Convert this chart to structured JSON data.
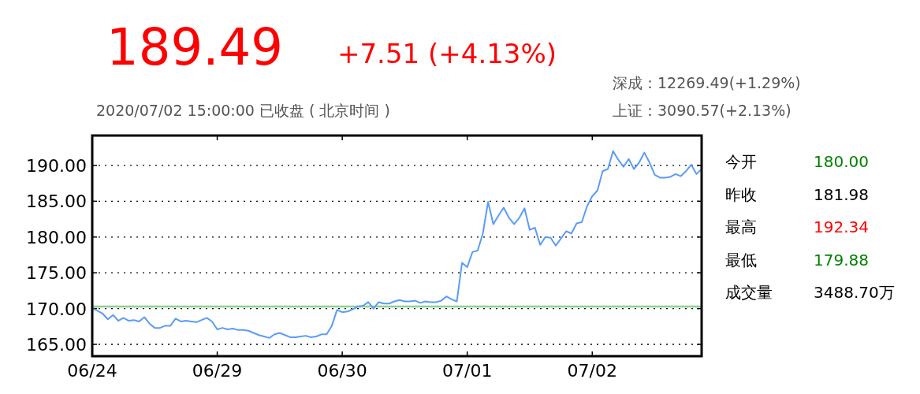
{
  "chart_data": {
    "type": "line",
    "title": "189.49",
    "subtitle": "2020/07/02 15:00:00 已收盘 ( 北京时间 )",
    "annotations": [
      "+7.51 (+4.13%)",
      "深成：12269.49(+1.29%)",
      "上证：3090.57(+2.13%)",
      "今开",
      "180.00",
      "昨收",
      "181.98",
      "最高",
      "192.34",
      "最低",
      "179.88",
      "成交量",
      "3488.70万"
    ],
    "categories": [
      "06/24",
      null,
      null,
      null,
      null,
      null,
      null,
      null,
      null,
      null,
      null,
      null,
      null,
      null,
      null,
      null,
      null,
      null,
      null,
      null,
      null,
      null,
      null,
      null,
      "06/29",
      null,
      null,
      null,
      null,
      null,
      null,
      null,
      null,
      null,
      null,
      null,
      null,
      null,
      null,
      null,
      null,
      null,
      null,
      null,
      null,
      null,
      null,
      null,
      "06/30",
      null,
      null,
      null,
      null,
      null,
      null,
      null,
      null,
      null,
      null,
      null,
      null,
      null,
      null,
      null,
      null,
      null,
      null,
      null,
      null,
      null,
      null,
      null,
      "07/01",
      null,
      null,
      null,
      null,
      null,
      null,
      null,
      null,
      null,
      null,
      null,
      null,
      null,
      null,
      null,
      null,
      null,
      null,
      null,
      null,
      null,
      null,
      null,
      "07/02",
      null,
      null,
      null,
      null,
      null,
      null,
      null,
      null,
      null,
      null,
      null,
      null,
      null,
      null,
      null,
      null,
      null,
      null,
      null,
      null,
      null
    ],
    "ylim": [
      163.35,
      194.18
    ],
    "yticks": [
      {
        "value": 165,
        "label": "165.00"
      },
      {
        "value": 170,
        "label": "170.00"
      },
      {
        "value": 175,
        "label": "175.00"
      },
      {
        "value": 180,
        "label": "180.00"
      },
      {
        "value": 185,
        "label": "185.00"
      },
      {
        "value": 190,
        "label": "190.00"
      }
    ],
    "grid": "y",
    "marker": "none",
    "line_style": "solid",
    "ref_lines": [
      {
        "axis": "y",
        "value": 170.3,
        "label": null,
        "color": "#90d090"
      }
    ],
    "series": [
      {
        "color": "#5b9cf5",
        "values": [
          170.0,
          169.7,
          169.3,
          168.5,
          169.1,
          168.3,
          168.7,
          168.3,
          168.4,
          168.2,
          168.8,
          167.9,
          167.3,
          167.3,
          167.6,
          167.6,
          168.6,
          168.2,
          168.3,
          168.2,
          168.1,
          168.4,
          168.7,
          168.2,
          167.1,
          167.3,
          167.1,
          167.2,
          167.0,
          167.0,
          166.9,
          166.6,
          166.3,
          166.1,
          165.9,
          166.4,
          166.6,
          166.3,
          166.0,
          166.0,
          166.1,
          166.2,
          166.0,
          166.1,
          166.4,
          166.4,
          167.6,
          169.8,
          169.5,
          169.6,
          169.9,
          170.3,
          170.4,
          170.9,
          170.0,
          170.9,
          170.7,
          170.7,
          171.0,
          171.2,
          171.0,
          171.0,
          171.1,
          170.8,
          171.0,
          170.9,
          170.9,
          171.1,
          171.7,
          171.3,
          171.0,
          176.4,
          175.8,
          177.9,
          178.1,
          180.5,
          184.9,
          181.8,
          183.0,
          184.1,
          182.7,
          181.8,
          182.7,
          184.0,
          181.0,
          181.3,
          178.9,
          180.0,
          179.9,
          178.8,
          179.8,
          180.8,
          180.5,
          181.9,
          182.1,
          184.3,
          185.7,
          186.5,
          189.2,
          189.5,
          192.0,
          190.8,
          189.8,
          190.9,
          189.5,
          190.4,
          191.8,
          190.4,
          188.7,
          188.3,
          188.3,
          188.4,
          188.8,
          188.5,
          189.2,
          190.1,
          188.8,
          189.5
        ]
      }
    ]
  }
}
